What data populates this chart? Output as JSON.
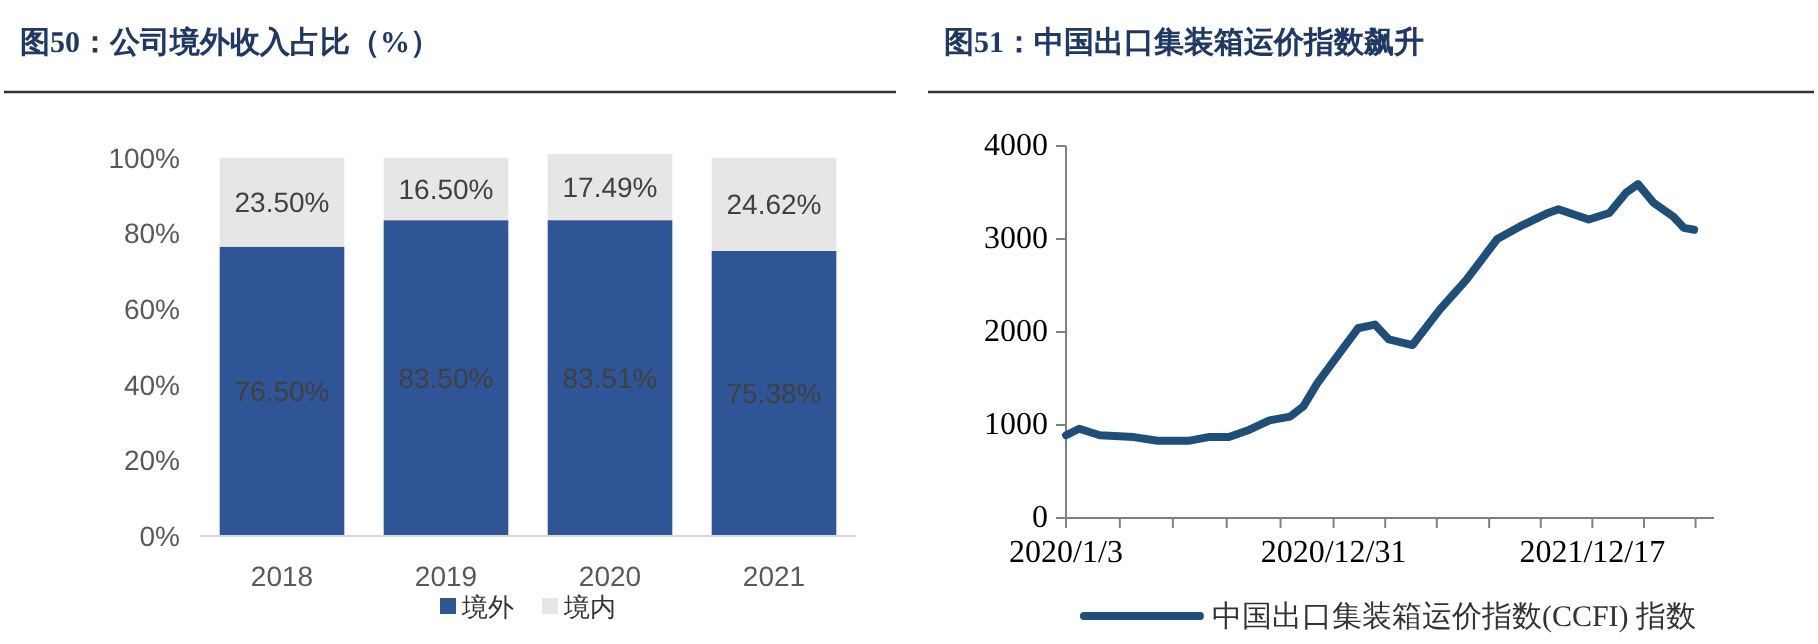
{
  "chart_data": [
    {
      "type": "bar",
      "stacked": true,
      "title": "图50：公司境外收入占比（%）",
      "categories": [
        "2018",
        "2019",
        "2020",
        "2021"
      ],
      "series": [
        {
          "name": "境外",
          "color": "#2f5597",
          "values": [
            76.5,
            83.5,
            83.51,
            75.38
          ],
          "value_labels": [
            "76.50%",
            "83.50%",
            "83.51%",
            "75.38%"
          ]
        },
        {
          "name": "境内",
          "color": "#e7e6e6",
          "values": [
            23.5,
            16.5,
            17.49,
            24.62
          ],
          "value_labels": [
            "23.50%",
            "16.50%",
            "17.49%",
            "24.62%"
          ]
        }
      ],
      "ylim": [
        0,
        101
      ],
      "yticks": [
        {
          "value": 0,
          "label": "0%"
        },
        {
          "value": 20,
          "label": "20%"
        },
        {
          "value": 40,
          "label": "40%"
        },
        {
          "value": 60,
          "label": "60%"
        },
        {
          "value": 80,
          "label": "80%"
        },
        {
          "value": 100,
          "label": "100%"
        }
      ],
      "grid": false,
      "legend": "bottom"
    },
    {
      "type": "line",
      "title": "图51：中国出口集装箱运价指数飙升",
      "x": [
        "2020-01-03",
        "2020-01-21",
        "2020-02-18",
        "2020-04-04",
        "2020-05-06",
        "2020-06-17",
        "2020-07-14",
        "2020-08-11",
        "2020-09-08",
        "2020-10-05",
        "2020-11-02",
        "2020-11-20",
        "2020-12-09",
        "2021-01-05",
        "2021-02-02",
        "2021-02-25",
        "2021-03-16",
        "2021-04-17",
        "2021-05-24",
        "2021-06-29",
        "2021-08-10",
        "2021-09-11",
        "2021-10-18",
        "2021-11-01",
        "2021-12-12",
        "2022-01-09",
        "2022-02-01",
        "2022-02-17",
        "2022-03-10",
        "2022-04-06",
        "2022-04-20",
        "2022-05-04"
      ],
      "series": [
        {
          "name": "中国出口集装箱运价指数(CCFI)  指数",
          "color": "#1f4e79",
          "values": [
            890,
            960,
            890,
            870,
            830,
            830,
            870,
            870,
            950,
            1050,
            1090,
            1200,
            1450,
            1740,
            2040,
            2080,
            1920,
            1860,
            2240,
            2560,
            3000,
            3140,
            3280,
            3320,
            3210,
            3280,
            3500,
            3590,
            3390,
            3240,
            3120,
            3100
          ]
        }
      ],
      "xlim": [
        "2020-01-03",
        "2022-05-31"
      ],
      "xticks": [
        {
          "value": "2020-01-03",
          "label": "2020/1/3"
        },
        {
          "value": "2020-03-16",
          "label": null
        },
        {
          "value": "2020-05-27",
          "label": null
        },
        {
          "value": "2020-08-08",
          "label": null
        },
        {
          "value": "2020-10-20",
          "label": null
        },
        {
          "value": "2020-12-31",
          "label": "2020/12/31"
        },
        {
          "value": "2021-03-11",
          "label": null
        },
        {
          "value": "2021-05-20",
          "label": null
        },
        {
          "value": "2021-07-30",
          "label": null
        },
        {
          "value": "2021-10-08",
          "label": null
        },
        {
          "value": "2021-12-17",
          "label": "2021/12/17"
        },
        {
          "value": "2022-02-25",
          "label": null
        },
        {
          "value": "2022-05-06",
          "label": null
        }
      ],
      "ylim": [
        0,
        4000
      ],
      "yticks": [
        0,
        1000,
        2000,
        3000,
        4000
      ],
      "grid": false,
      "legend": "bottom",
      "marker": "none",
      "line_style": "solid"
    }
  ]
}
